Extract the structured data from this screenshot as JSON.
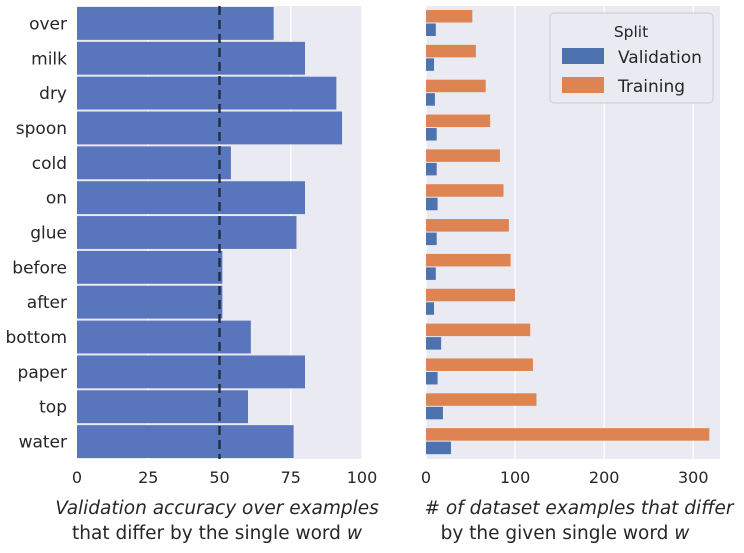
{
  "chart_data": [
    {
      "type": "bar",
      "orientation": "horizontal",
      "categories": [
        "over",
        "milk",
        "dry",
        "spoon",
        "cold",
        "on",
        "glue",
        "before",
        "after",
        "bottom",
        "paper",
        "top",
        "water"
      ],
      "values": [
        69,
        80,
        91,
        93,
        54,
        80,
        77,
        51,
        51,
        61,
        80,
        60,
        76
      ],
      "reference_line": 50,
      "xlim": [
        0,
        100
      ],
      "xticks": [
        "0",
        "25",
        "50",
        "75",
        "100"
      ],
      "xlabel_line1": "Validation accuracy over examples",
      "xlabel_line2_prefix": "that differ by the single word ",
      "xlabel_variable": "w",
      "color": "#5975bb",
      "grid": true
    },
    {
      "type": "bar",
      "orientation": "horizontal",
      "grouped": true,
      "categories": [
        "over",
        "milk",
        "dry",
        "spoon",
        "cold",
        "on",
        "glue",
        "before",
        "after",
        "bottom",
        "paper",
        "top",
        "water"
      ],
      "series": [
        {
          "name": "Validation",
          "color": "#4c72b0",
          "values": [
            11,
            9,
            10,
            12,
            12,
            13,
            12,
            11,
            9,
            17,
            13,
            19,
            28
          ]
        },
        {
          "name": "Training",
          "color": "#dd8452",
          "values": [
            52,
            56,
            67,
            72,
            83,
            87,
            93,
            95,
            100,
            117,
            120,
            124,
            318
          ]
        }
      ],
      "xlim": [
        0,
        330
      ],
      "xticks": [
        "0",
        "100",
        "200",
        "300"
      ],
      "xlabel_line1": "# of dataset examples that differ",
      "xlabel_line2_prefix": "by the given single word ",
      "xlabel_variable": "w",
      "legend_title": "Split",
      "legend_position": "top-right",
      "grid": true
    }
  ]
}
